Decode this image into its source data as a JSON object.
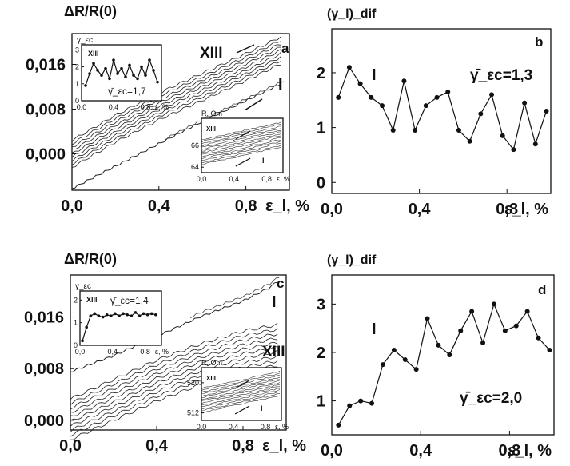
{
  "chart_data": [
    {
      "panel": "a",
      "type": "line",
      "panel_label": "a",
      "ylabel": "ΔR/R(0)",
      "xlabel": "ε_l, %",
      "x_ticks": [
        "0,0",
        "0,4",
        "0,8"
      ],
      "y_ticks": [
        "0,016",
        "0,008",
        "0,000"
      ],
      "xlim": [
        0.0,
        1.0
      ],
      "ylim": [
        -0.0065,
        0.0215
      ],
      "annotations": [
        "XIII",
        "I"
      ],
      "series": [
        {
          "name": "XIII",
          "x": [
            0.0,
            0.2,
            0.4,
            0.6,
            0.8,
            0.96
          ],
          "y": [
            0.0,
            0.0045,
            0.0085,
            0.012,
            0.0155,
            0.0185
          ]
        },
        {
          "name": "I",
          "x": [
            0.0,
            0.2,
            0.4,
            0.6,
            0.8,
            0.96
          ],
          "y": [
            -0.0062,
            -0.0022,
            0.0018,
            0.0058,
            0.0095,
            0.0125
          ]
        }
      ],
      "inset_gamma": {
        "ylabel": "γ_εc",
        "label": "XIII",
        "mean_label": "γ̄_εc=1,7",
        "x_ticks": [
          "0,0",
          "0,4",
          "0,8"
        ],
        "xlabel": "ε, %",
        "y_ticks": [
          "0",
          "1",
          "2",
          "3"
        ],
        "xlim": [
          0.0,
          1.0
        ],
        "ylim": [
          0,
          3.3
        ],
        "x": [
          0.05,
          0.1,
          0.15,
          0.2,
          0.25,
          0.3,
          0.35,
          0.4,
          0.45,
          0.5,
          0.55,
          0.6,
          0.65,
          0.7,
          0.75,
          0.8,
          0.85,
          0.9,
          0.95
        ],
        "y": [
          0.9,
          1.6,
          2.2,
          1.8,
          1.5,
          1.9,
          1.3,
          2.4,
          1.6,
          1.9,
          1.4,
          2.1,
          1.5,
          1.3,
          2.0,
          1.5,
          2.4,
          1.8,
          1.1
        ]
      },
      "inset_resistance": {
        "ylabel": "R, Om",
        "label_top": "XIII",
        "label_bottom": "I",
        "x_ticks": [
          "0,0",
          "0,4",
          "0,8"
        ],
        "xlabel": "ε, %",
        "y_ticks": [
          "66",
          "64"
        ],
        "xlim": [
          0.0,
          1.0
        ],
        "ylim": [
          63.5,
          68.5
        ]
      }
    },
    {
      "panel": "b",
      "type": "line",
      "panel_label": "b",
      "ylabel": "(γ_l)_dif",
      "xlabel": "ε_l, %",
      "x_ticks": [
        "0,0",
        "0,4",
        "0,8"
      ],
      "y_ticks": [
        "2",
        "1",
        "0"
      ],
      "xlim": [
        0.0,
        1.0
      ],
      "ylim": [
        -0.2,
        2.8
      ],
      "annotations": [
        "I",
        "γ̄_εc=1,3"
      ],
      "x": [
        0.03,
        0.08,
        0.13,
        0.18,
        0.23,
        0.28,
        0.33,
        0.38,
        0.43,
        0.48,
        0.53,
        0.58,
        0.63,
        0.68,
        0.73,
        0.78,
        0.83,
        0.88,
        0.93,
        0.98
      ],
      "y": [
        1.55,
        2.1,
        1.8,
        1.55,
        1.4,
        0.95,
        1.85,
        0.95,
        1.4,
        1.55,
        1.65,
        0.95,
        0.75,
        1.25,
        1.6,
        0.85,
        0.6,
        1.45,
        0.7,
        1.3
      ]
    },
    {
      "panel": "c",
      "type": "line",
      "panel_label": "c",
      "ylabel": "ΔR/R(0)",
      "xlabel": "ε_l, %",
      "x_ticks": [
        "0,0",
        "0,4",
        "0,8"
      ],
      "y_ticks": [
        "0,016",
        "0,008",
        "0,000"
      ],
      "xlim": [
        0.0,
        1.0
      ],
      "ylim": [
        -0.0015,
        0.0225
      ],
      "annotations": [
        "I",
        "XIII"
      ],
      "series": [
        {
          "name": "I",
          "x": [
            0.0,
            0.2,
            0.4,
            0.6,
            0.8,
            0.92,
            0.96
          ],
          "y": [
            0.0075,
            0.01,
            0.013,
            0.016,
            0.0185,
            0.0205,
            0.0215
          ]
        },
        {
          "name": "XIII",
          "x": [
            0.0,
            0.2,
            0.4,
            0.6,
            0.8,
            0.96
          ],
          "y": [
            0.0005,
            0.0035,
            0.0065,
            0.009,
            0.011,
            0.012
          ]
        }
      ],
      "inset_gamma": {
        "ylabel": "γ_εc",
        "label": "XIII",
        "mean_label": "γ̄_εc=1,4",
        "x_ticks": [
          "0,0",
          "0,4",
          "0,8"
        ],
        "xlabel": "ε, %",
        "y_ticks": [
          "0",
          "1",
          "2"
        ],
        "xlim": [
          0.0,
          1.0
        ],
        "ylim": [
          0,
          2.4
        ],
        "x": [
          0.03,
          0.08,
          0.13,
          0.18,
          0.23,
          0.28,
          0.33,
          0.38,
          0.43,
          0.48,
          0.53,
          0.58,
          0.63,
          0.68,
          0.73,
          0.78,
          0.83,
          0.88,
          0.93
        ],
        "y": [
          0.2,
          0.8,
          1.3,
          1.4,
          1.3,
          1.25,
          1.35,
          1.3,
          1.4,
          1.3,
          1.4,
          1.35,
          1.3,
          1.45,
          1.3,
          1.4,
          1.35,
          1.4,
          1.35
        ]
      },
      "inset_resistance": {
        "ylabel": "R, Om",
        "label_top": "XIII",
        "label_bottom": "I",
        "x_ticks": [
          "0,0",
          "0,4",
          "0,8"
        ],
        "xlabel": "ε, %",
        "y_ticks": [
          "520",
          "512"
        ],
        "xlim": [
          0.0,
          1.0
        ],
        "ylim": [
          510,
          524
        ]
      }
    },
    {
      "panel": "d",
      "type": "line",
      "panel_label": "d",
      "ylabel": "(γ_l)_dif",
      "xlabel": "ε_l, %",
      "x_ticks": [
        "0,0",
        "0,4",
        "0,8"
      ],
      "y_ticks": [
        "3",
        "2",
        "1"
      ],
      "xlim": [
        0.0,
        1.0
      ],
      "ylim": [
        0.3,
        3.6
      ],
      "annotations": [
        "I",
        "γ̄_εc=2,0"
      ],
      "x": [
        0.03,
        0.08,
        0.13,
        0.18,
        0.23,
        0.28,
        0.33,
        0.38,
        0.43,
        0.48,
        0.53,
        0.58,
        0.63,
        0.68,
        0.73,
        0.78,
        0.83,
        0.88,
        0.93,
        0.98
      ],
      "y": [
        0.5,
        0.9,
        1.0,
        0.95,
        1.75,
        2.05,
        1.85,
        1.65,
        2.7,
        2.15,
        1.95,
        2.45,
        2.85,
        2.2,
        3.0,
        2.45,
        2.55,
        2.85,
        2.3,
        2.05
      ]
    }
  ]
}
